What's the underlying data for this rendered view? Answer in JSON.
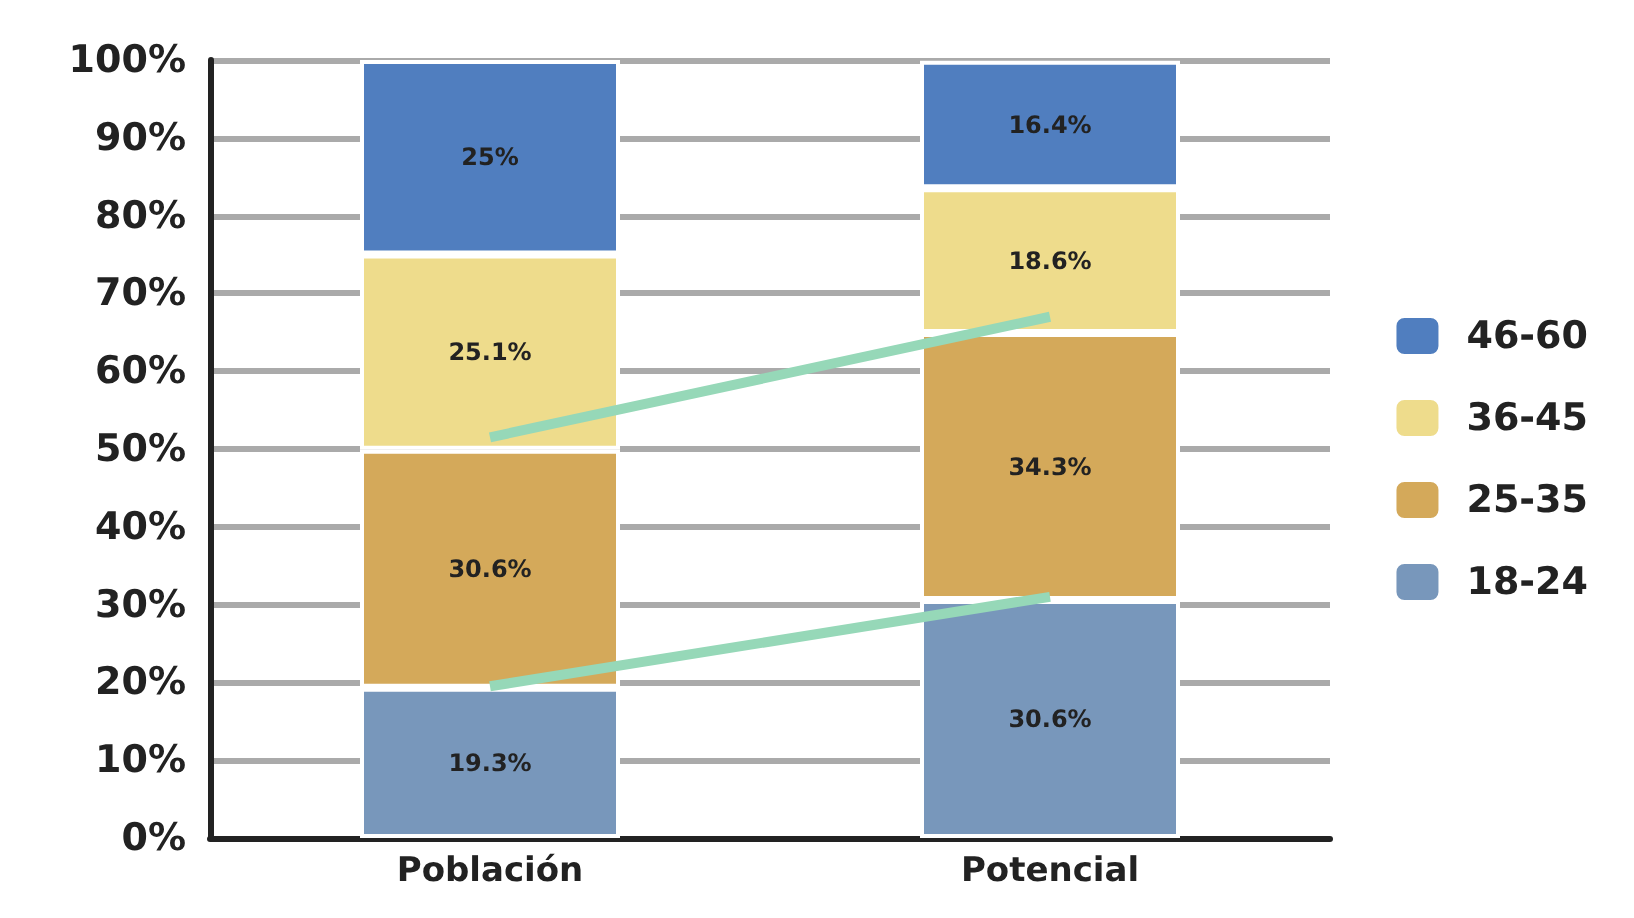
{
  "chart_data": {
    "type": "bar",
    "stacked": true,
    "categories": [
      "Población",
      "Potencial"
    ],
    "series": [
      {
        "name": "18-24",
        "color": "#7897bb",
        "values": [
          19.3,
          30.6
        ],
        "value_labels": [
          "19.3%",
          "30.6%"
        ]
      },
      {
        "name": "25-35",
        "color": "#d4a95a",
        "values": [
          30.6,
          34.3
        ],
        "value_labels": [
          "30.6%",
          "34.3%"
        ]
      },
      {
        "name": "36-45",
        "color": "#eedc8c",
        "values": [
          25.1,
          18.6
        ],
        "value_labels": [
          "25.1%",
          "18.6%"
        ]
      },
      {
        "name": "46-60",
        "color": "#507ebf",
        "values": [
          25,
          16.4
        ],
        "value_labels": [
          "25%",
          "16.4%"
        ]
      },
      {
        "type": "line",
        "color": "#96d8b8",
        "values": [
          19.5,
          31
        ]
      },
      {
        "type": "line",
        "color": "#96d8b8",
        "values": [
          51.5,
          67
        ]
      }
    ],
    "ylim": [
      0,
      100
    ],
    "yticks": [
      {
        "value": 0,
        "label": "0%"
      },
      {
        "value": 10,
        "label": "10%"
      },
      {
        "value": 20,
        "label": "20%"
      },
      {
        "value": 30,
        "label": "30%"
      },
      {
        "value": 40,
        "label": "40%"
      },
      {
        "value": 50,
        "label": "50%"
      },
      {
        "value": 60,
        "label": "60%"
      },
      {
        "value": 70,
        "label": "70%"
      },
      {
        "value": 80,
        "label": "80%"
      },
      {
        "value": 90,
        "label": "90%"
      },
      {
        "value": 100,
        "label": "100%"
      }
    ],
    "grid": "y",
    "legend": "right",
    "marker": "none"
  }
}
